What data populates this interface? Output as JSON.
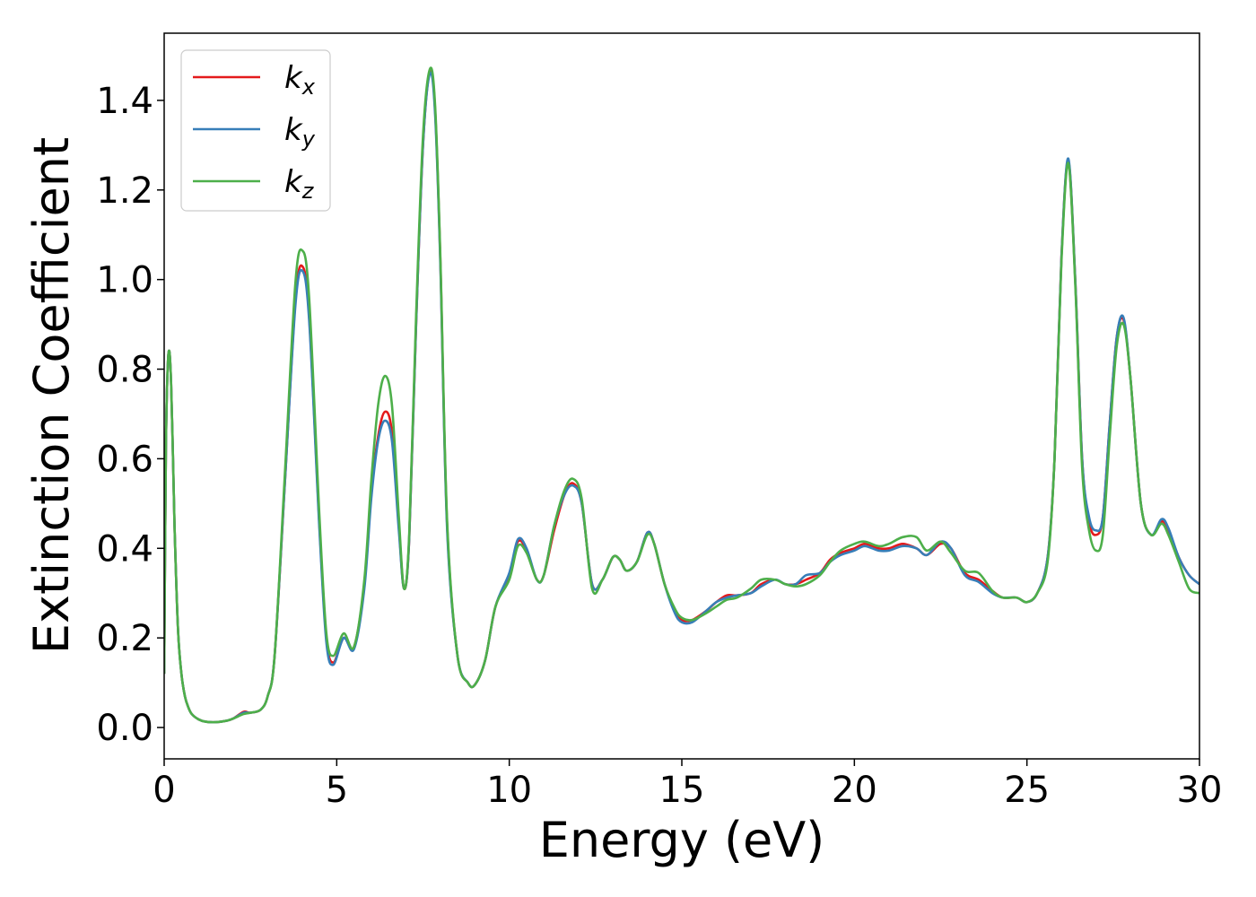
{
  "chart_data": {
    "type": "line",
    "title": "",
    "xlabel": "Energy (eV)",
    "ylabel": "Extinction Coefficient",
    "xlim": [
      0,
      30
    ],
    "ylim": [
      -0.07,
      1.55
    ],
    "xticks": [
      0,
      5,
      10,
      15,
      20,
      25,
      30
    ],
    "xtick_labels": [
      "0",
      "5",
      "10",
      "15",
      "20",
      "25",
      "30"
    ],
    "yticks": [
      0.0,
      0.2,
      0.4,
      0.6,
      0.8,
      1.0,
      1.2,
      1.4
    ],
    "ytick_labels": [
      "0.0",
      "0.2",
      "0.4",
      "0.6",
      "0.8",
      "1.0",
      "1.2",
      "1.4"
    ],
    "grid": false,
    "legend_position": "top-left",
    "series": [
      {
        "name": "k_x",
        "label_base": "k",
        "label_sub": "x",
        "color": "#e41a1c",
        "x": [
          0,
          0.05,
          0.1,
          0.15,
          0.2,
          0.25,
          0.3,
          0.4,
          0.5,
          0.6,
          0.7,
          0.8,
          1.0,
          1.2,
          1.5,
          1.8,
          2.0,
          2.3,
          2.5,
          2.8,
          3.0,
          3.2,
          3.5,
          3.8,
          4.0,
          4.2,
          4.5,
          4.7,
          4.9,
          5.2,
          5.5,
          5.8,
          6.0,
          6.2,
          6.4,
          6.6,
          6.8,
          6.95,
          7.1,
          7.3,
          7.5,
          7.7,
          7.85,
          8.0,
          8.2,
          8.5,
          8.8,
          9.0,
          9.3,
          9.6,
          10.0,
          10.25,
          10.5,
          10.8,
          11.0,
          11.3,
          11.6,
          11.85,
          12.1,
          12.4,
          12.7,
          13.0,
          13.2,
          13.4,
          13.7,
          14.0,
          14.2,
          14.5,
          14.8,
          15.0,
          15.3,
          15.7,
          16.0,
          16.3,
          16.6,
          17.0,
          17.3,
          17.7,
          18.0,
          18.3,
          18.6,
          19.0,
          19.3,
          19.6,
          20.0,
          20.3,
          20.7,
          21.0,
          21.4,
          21.8,
          22.1,
          22.5,
          22.8,
          23.2,
          23.6,
          24.0,
          24.3,
          24.7,
          25.0,
          25.3,
          25.6,
          25.8,
          26.0,
          26.2,
          26.4,
          26.6,
          26.8,
          27.0,
          27.2,
          27.4,
          27.6,
          27.8,
          28.0,
          28.3,
          28.6,
          28.9,
          29.1,
          29.4,
          29.7,
          30.0
        ],
        "values": [
          0.12,
          0.62,
          0.8,
          0.84,
          0.77,
          0.62,
          0.45,
          0.22,
          0.12,
          0.07,
          0.045,
          0.03,
          0.018,
          0.013,
          0.012,
          0.015,
          0.02,
          0.035,
          0.033,
          0.04,
          0.07,
          0.16,
          0.55,
          0.95,
          1.03,
          0.92,
          0.45,
          0.2,
          0.145,
          0.2,
          0.18,
          0.32,
          0.52,
          0.65,
          0.705,
          0.66,
          0.45,
          0.31,
          0.42,
          0.9,
          1.3,
          1.465,
          1.38,
          1.05,
          0.45,
          0.16,
          0.1,
          0.095,
          0.15,
          0.27,
          0.34,
          0.415,
          0.395,
          0.33,
          0.34,
          0.44,
          0.52,
          0.545,
          0.5,
          0.32,
          0.33,
          0.38,
          0.375,
          0.35,
          0.37,
          0.435,
          0.41,
          0.32,
          0.26,
          0.24,
          0.24,
          0.26,
          0.28,
          0.295,
          0.295,
          0.3,
          0.32,
          0.33,
          0.32,
          0.32,
          0.33,
          0.345,
          0.375,
          0.39,
          0.4,
          0.41,
          0.4,
          0.4,
          0.41,
          0.4,
          0.385,
          0.41,
          0.4,
          0.345,
          0.33,
          0.305,
          0.29,
          0.29,
          0.28,
          0.3,
          0.38,
          0.6,
          1.05,
          1.265,
          1.0,
          0.6,
          0.46,
          0.43,
          0.47,
          0.68,
          0.87,
          0.91,
          0.78,
          0.5,
          0.43,
          0.46,
          0.44,
          0.38,
          0.34,
          0.32
        ]
      },
      {
        "name": "k_y",
        "label_base": "k",
        "label_sub": "y",
        "color": "#377eb8",
        "x": [
          0,
          0.05,
          0.1,
          0.15,
          0.2,
          0.25,
          0.3,
          0.4,
          0.5,
          0.6,
          0.7,
          0.8,
          1.0,
          1.2,
          1.5,
          1.8,
          2.0,
          2.3,
          2.5,
          2.8,
          3.0,
          3.2,
          3.5,
          3.8,
          4.0,
          4.2,
          4.5,
          4.7,
          4.9,
          5.2,
          5.5,
          5.8,
          6.0,
          6.2,
          6.4,
          6.6,
          6.8,
          6.95,
          7.1,
          7.3,
          7.5,
          7.7,
          7.85,
          8.0,
          8.2,
          8.5,
          8.8,
          9.0,
          9.3,
          9.6,
          10.0,
          10.25,
          10.5,
          10.8,
          11.0,
          11.3,
          11.6,
          11.85,
          12.1,
          12.4,
          12.7,
          13.0,
          13.2,
          13.4,
          13.7,
          14.0,
          14.2,
          14.5,
          14.8,
          15.0,
          15.3,
          15.7,
          16.0,
          16.3,
          16.6,
          17.0,
          17.3,
          17.7,
          18.0,
          18.3,
          18.6,
          19.0,
          19.3,
          19.6,
          20.0,
          20.3,
          20.7,
          21.0,
          21.4,
          21.8,
          22.1,
          22.5,
          22.8,
          23.2,
          23.6,
          24.0,
          24.3,
          24.7,
          25.0,
          25.3,
          25.6,
          25.8,
          26.0,
          26.2,
          26.4,
          26.6,
          26.8,
          27.0,
          27.2,
          27.4,
          27.6,
          27.8,
          28.0,
          28.3,
          28.6,
          28.9,
          29.1,
          29.4,
          29.7,
          30.0
        ],
        "values": [
          0.12,
          0.62,
          0.8,
          0.84,
          0.77,
          0.62,
          0.45,
          0.22,
          0.12,
          0.07,
          0.045,
          0.03,
          0.018,
          0.013,
          0.012,
          0.015,
          0.02,
          0.033,
          0.033,
          0.04,
          0.07,
          0.16,
          0.55,
          0.94,
          1.02,
          0.91,
          0.44,
          0.19,
          0.14,
          0.2,
          0.175,
          0.31,
          0.51,
          0.64,
          0.685,
          0.64,
          0.44,
          0.31,
          0.42,
          0.9,
          1.3,
          1.46,
          1.37,
          1.04,
          0.44,
          0.16,
          0.1,
          0.095,
          0.15,
          0.27,
          0.345,
          0.42,
          0.4,
          0.33,
          0.34,
          0.45,
          0.52,
          0.54,
          0.5,
          0.32,
          0.33,
          0.38,
          0.375,
          0.35,
          0.37,
          0.435,
          0.41,
          0.32,
          0.255,
          0.235,
          0.235,
          0.26,
          0.28,
          0.29,
          0.295,
          0.3,
          0.315,
          0.33,
          0.32,
          0.32,
          0.34,
          0.345,
          0.37,
          0.385,
          0.395,
          0.405,
          0.395,
          0.395,
          0.405,
          0.4,
          0.385,
          0.415,
          0.4,
          0.34,
          0.325,
          0.3,
          0.29,
          0.29,
          0.28,
          0.3,
          0.38,
          0.6,
          1.05,
          1.27,
          1.0,
          0.6,
          0.47,
          0.44,
          0.47,
          0.68,
          0.87,
          0.915,
          0.78,
          0.5,
          0.43,
          0.465,
          0.445,
          0.38,
          0.34,
          0.32
        ]
      },
      {
        "name": "k_z",
        "label_base": "k",
        "label_sub": "z",
        "color": "#4daf4a",
        "x": [
          0,
          0.05,
          0.1,
          0.15,
          0.2,
          0.25,
          0.3,
          0.4,
          0.5,
          0.6,
          0.7,
          0.8,
          1.0,
          1.2,
          1.5,
          1.8,
          2.0,
          2.3,
          2.5,
          2.8,
          3.0,
          3.2,
          3.5,
          3.8,
          4.0,
          4.2,
          4.5,
          4.7,
          4.9,
          5.2,
          5.5,
          5.8,
          6.0,
          6.2,
          6.4,
          6.6,
          6.8,
          6.95,
          7.1,
          7.3,
          7.5,
          7.7,
          7.85,
          8.0,
          8.2,
          8.5,
          8.8,
          9.0,
          9.3,
          9.6,
          10.0,
          10.25,
          10.5,
          10.8,
          11.0,
          11.3,
          11.6,
          11.85,
          12.1,
          12.4,
          12.7,
          13.0,
          13.2,
          13.4,
          13.7,
          14.0,
          14.2,
          14.5,
          14.8,
          15.0,
          15.3,
          15.7,
          16.0,
          16.3,
          16.6,
          17.0,
          17.3,
          17.7,
          18.0,
          18.3,
          18.6,
          19.0,
          19.3,
          19.6,
          20.0,
          20.3,
          20.7,
          21.0,
          21.4,
          21.8,
          22.1,
          22.5,
          22.8,
          23.2,
          23.6,
          24.0,
          24.3,
          24.7,
          25.0,
          25.3,
          25.6,
          25.8,
          26.0,
          26.2,
          26.4,
          26.6,
          26.8,
          27.0,
          27.2,
          27.4,
          27.6,
          27.8,
          28.0,
          28.3,
          28.6,
          28.9,
          29.1,
          29.4,
          29.7,
          30.0
        ],
        "values": [
          0.12,
          0.62,
          0.8,
          0.84,
          0.77,
          0.62,
          0.45,
          0.22,
          0.12,
          0.07,
          0.045,
          0.03,
          0.018,
          0.013,
          0.012,
          0.015,
          0.02,
          0.03,
          0.033,
          0.04,
          0.07,
          0.16,
          0.57,
          0.99,
          1.065,
          0.96,
          0.47,
          0.21,
          0.16,
          0.21,
          0.18,
          0.33,
          0.55,
          0.72,
          0.785,
          0.72,
          0.47,
          0.31,
          0.43,
          0.92,
          1.32,
          1.47,
          1.39,
          1.06,
          0.46,
          0.16,
          0.1,
          0.095,
          0.15,
          0.27,
          0.33,
          0.405,
          0.39,
          0.33,
          0.34,
          0.45,
          0.53,
          0.555,
          0.51,
          0.31,
          0.33,
          0.38,
          0.375,
          0.35,
          0.37,
          0.43,
          0.41,
          0.32,
          0.265,
          0.245,
          0.24,
          0.255,
          0.27,
          0.285,
          0.29,
          0.31,
          0.33,
          0.33,
          0.32,
          0.315,
          0.32,
          0.34,
          0.37,
          0.395,
          0.41,
          0.415,
          0.405,
          0.41,
          0.425,
          0.425,
          0.395,
          0.415,
          0.39,
          0.35,
          0.345,
          0.305,
          0.29,
          0.29,
          0.28,
          0.3,
          0.37,
          0.6,
          1.04,
          1.26,
          0.99,
          0.58,
          0.44,
          0.395,
          0.43,
          0.65,
          0.85,
          0.9,
          0.78,
          0.5,
          0.43,
          0.455,
          0.43,
          0.37,
          0.31,
          0.3
        ]
      }
    ]
  }
}
